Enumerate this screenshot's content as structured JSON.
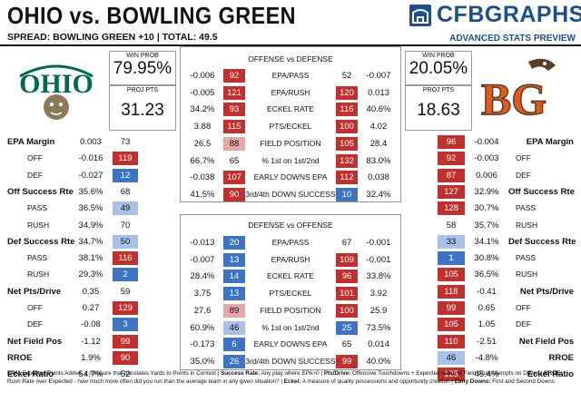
{
  "header": {
    "title": "OHIO vs. BOWLING GREEN",
    "spread": "SPREAD: BOWLING GREEN +10 | TOTAL: 49.5",
    "brand": "CFBGRAPHS",
    "subtitle": "ADVANCED STATS PREVIEW"
  },
  "teams": {
    "home": {
      "logo_text": "OHIO",
      "win_prob_label": "WIN PROB",
      "win_prob": "79.95%",
      "proj_label": "PROJ PTS",
      "proj": "31.23"
    },
    "away": {
      "logo_text": "BG",
      "win_prob_label": "WIN PROB",
      "win_prob": "20.05%",
      "proj_label": "PROJ PTS",
      "proj": "18.63"
    }
  },
  "colors": {
    "red": "#c0302e",
    "light_red": "#e6a8a6",
    "blue": "#3f73c4",
    "light_blue": "#a9c0e8",
    "ohio_green": "#00694e",
    "bg_orange": "#e05a1e",
    "brand_blue": "#1f4e8c"
  },
  "left_stats": [
    {
      "label": "EPA Margin",
      "bold": true,
      "val": "0.003",
      "rank": "73",
      "c": ""
    },
    {
      "label": "OFF",
      "bold": false,
      "val": "-0.016",
      "rank": "119",
      "c": "r"
    },
    {
      "label": "DEF",
      "bold": false,
      "val": "-0.027",
      "rank": "12",
      "c": "bl"
    },
    {
      "label": "Off Success Rte",
      "bold": true,
      "val": "35.6%",
      "rank": "68",
      "c": ""
    },
    {
      "label": "PASS",
      "bold": false,
      "val": "36.5%",
      "rank": "49",
      "c": "lb"
    },
    {
      "label": "RUSH",
      "bold": false,
      "val": "34.9%",
      "rank": "70",
      "c": ""
    },
    {
      "label": "Def Success Rte",
      "bold": true,
      "val": "34.7%",
      "rank": "50",
      "c": "lb"
    },
    {
      "label": "PASS",
      "bold": false,
      "val": "38.1%",
      "rank": "116",
      "c": "r"
    },
    {
      "label": "RUSH",
      "bold": false,
      "val": "29.3%",
      "rank": "2",
      "c": "bl"
    },
    {
      "label": "Net Pts/Drive",
      "bold": true,
      "val": "0.35",
      "rank": "59",
      "c": ""
    },
    {
      "label": "OFF",
      "bold": false,
      "val": "0.27",
      "rank": "129",
      "c": "r"
    },
    {
      "label": "DEF",
      "bold": false,
      "val": "-0.08",
      "rank": "3",
      "c": "bl"
    },
    {
      "label": "Net Field Pos",
      "bold": true,
      "val": "-1.12",
      "rank": "99",
      "c": "r"
    },
    {
      "label": "RROE",
      "bold": true,
      "val": "1.9%",
      "rank": "90",
      "c": "r"
    },
    {
      "label": "Eckel Ratio",
      "bold": true,
      "val": "54.7%",
      "rank": "52",
      "c": ""
    }
  ],
  "right_stats": [
    {
      "label": "EPA Margin",
      "bold": true,
      "val": "-0.004",
      "rank": "96",
      "c": "r"
    },
    {
      "label": "OFF",
      "bold": false,
      "val": "-0.003",
      "rank": "92",
      "c": "r"
    },
    {
      "label": "DEF",
      "bold": false,
      "val": "0.006",
      "rank": "87",
      "c": "r"
    },
    {
      "label": "Off Success Rte",
      "bold": true,
      "val": "32.9%",
      "rank": "127",
      "c": "r"
    },
    {
      "label": "PASS",
      "bold": false,
      "val": "30.7%",
      "rank": "128",
      "c": "r"
    },
    {
      "label": "RUSH",
      "bold": false,
      "val": "35.7%",
      "rank": "58",
      "c": ""
    },
    {
      "label": "Def Success Rte",
      "bold": true,
      "val": "34.1%",
      "rank": "33",
      "c": "lb"
    },
    {
      "label": "PASS",
      "bold": false,
      "val": "30.8%",
      "rank": "1",
      "c": "bl"
    },
    {
      "label": "RUSH",
      "bold": false,
      "val": "36.5%",
      "rank": "105",
      "c": "r"
    },
    {
      "label": "Net Pts/Drive",
      "bold": true,
      "val": "-0.41",
      "rank": "118",
      "c": "r"
    },
    {
      "label": "OFF",
      "bold": false,
      "val": "0.65",
      "rank": "99",
      "c": "r"
    },
    {
      "label": "DEF",
      "bold": false,
      "val": "1.05",
      "rank": "105",
      "c": "r"
    },
    {
      "label": "Net Field Pos",
      "bold": true,
      "val": "-2.51",
      "rank": "110",
      "c": "r"
    },
    {
      "label": "RROE",
      "bold": true,
      "val": "-4.8%",
      "rank": "46",
      "c": "lb"
    },
    {
      "label": "Eckel Ratio",
      "bold": true,
      "val": "45.4%",
      "rank": "125",
      "c": "r"
    }
  ],
  "ovd": {
    "title": "OFFENSE vs DEFENSE",
    "rows": [
      {
        "lv": "-0.006",
        "lr": "92",
        "lc": "r",
        "label": "EPA/PASS",
        "rr": "52",
        "rc": "",
        "rv": "-0.007"
      },
      {
        "lv": "-0.005",
        "lr": "121",
        "lc": "r",
        "label": "EPA/RUSH",
        "rr": "120",
        "rc": "r",
        "rv": "0.013"
      },
      {
        "lv": "34.2%",
        "lr": "93",
        "lc": "r",
        "label": "ECKEL RATE",
        "rr": "116",
        "rc": "r",
        "rv": "40.6%"
      },
      {
        "lv": "3.88",
        "lr": "115",
        "lc": "r",
        "label": "PTS/ECKEL",
        "rr": "100",
        "rc": "r",
        "rv": "4.02"
      },
      {
        "lv": "26.5",
        "lr": "88",
        "lc": "lr",
        "label": "FIELD POSITION",
        "rr": "105",
        "rc": "r",
        "rv": "28.4"
      },
      {
        "lv": "66.7%",
        "lr": "65",
        "lc": "",
        "label": "% 1st on 1st/2nd",
        "rr": "132",
        "rc": "r",
        "rv": "83.0%"
      },
      {
        "lv": "-0.038",
        "lr": "107",
        "lc": "r",
        "label": "EARLY DOWNS EPA",
        "rr": "112",
        "rc": "r",
        "rv": "0.038"
      },
      {
        "lv": "41.5%",
        "lr": "90",
        "lc": "r",
        "label": "3rd/4th DOWN SUCCESS",
        "rr": "10",
        "rc": "bl",
        "rv": "32.4%"
      }
    ]
  },
  "dvo": {
    "title": "DEFENSE vs OFFENSE",
    "rows": [
      {
        "lv": "-0.013",
        "lr": "20",
        "lc": "bl",
        "label": "EPA/PASS",
        "rr": "67",
        "rc": "",
        "rv": "-0.001"
      },
      {
        "lv": "-0.007",
        "lr": "13",
        "lc": "bl",
        "label": "EPA/RUSH",
        "rr": "109",
        "rc": "r",
        "rv": "-0.001"
      },
      {
        "lv": "28.4%",
        "lr": "14",
        "lc": "bl",
        "label": "ECKEL RATE",
        "rr": "96",
        "rc": "r",
        "rv": "33.8%"
      },
      {
        "lv": "3.75",
        "lr": "13",
        "lc": "bl",
        "label": "PTS/ECKEL",
        "rr": "101",
        "rc": "r",
        "rv": "3.92"
      },
      {
        "lv": "27.6",
        "lr": "89",
        "lc": "lr",
        "label": "FIELD POSITION",
        "rr": "100",
        "rc": "r",
        "rv": "25.9"
      },
      {
        "lv": "60.9%",
        "lr": "46",
        "lc": "lb",
        "label": "% 1st on 1st/2nd",
        "rr": "25",
        "rc": "bl",
        "rv": "73.5%"
      },
      {
        "lv": "-0.173",
        "lr": "6",
        "lc": "bl",
        "label": "EARLY DOWNS EPA",
        "rr": "65",
        "rc": "",
        "rv": "0.014"
      },
      {
        "lv": "35.0%",
        "lr": "26",
        "lc": "bl",
        "label": "3rd/4th DOWN SUCCESS",
        "rr": "99",
        "rc": "r",
        "rv": "40.0%"
      }
    ]
  },
  "footer": {
    "t1b": "EPA:",
    "t1": " Expected Points Added, a measure that translates Yards to Points in Context | ",
    "t2b": "Success Rate:",
    "t2": " Any play where EPA>0 | ",
    "t3b": "Pts/Drive:",
    "t3": " Offensive Touchdowns + Expected Value of Field Goal Attempts on Drives | ",
    "t4b": "RROE:",
    "t4": " Rush Rate over Expected - how much more often did you run than the average team in any given situation? | ",
    "t5b": "Eckel:",
    "t5": " A measure of quality possessions and opportunity creation | ",
    "t6b": "Early Downs:",
    "t6": " First and Second Downs"
  }
}
